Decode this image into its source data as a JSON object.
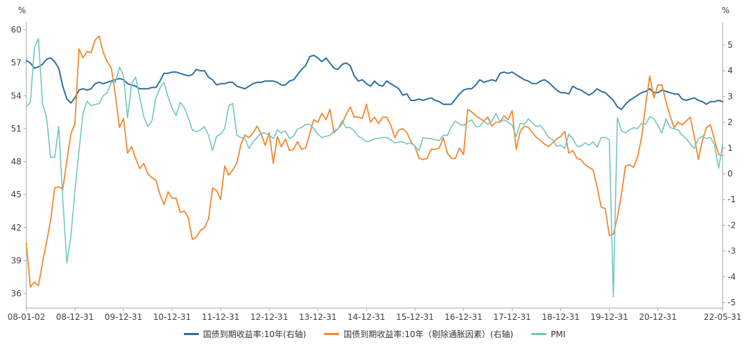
{
  "chart_data": {
    "type": "line",
    "title": "",
    "left_axis": {
      "unit": "%",
      "min": 36,
      "max": 60,
      "step": 3,
      "ticks": [
        36,
        39,
        42,
        45,
        48,
        51,
        54,
        57,
        60
      ]
    },
    "right_axis": {
      "unit": "%",
      "min": -5,
      "max": 5,
      "step": 1,
      "ticks": [
        -5,
        -4,
        -3,
        -2,
        -1,
        0,
        1,
        2,
        3,
        4,
        5
      ]
    },
    "grid": "off",
    "legend_position": "bottom",
    "x_start_month": "2008-01",
    "x_months_total": 173,
    "x_max_t": 172,
    "x_ticks": [
      {
        "label": "08-01-02",
        "t": 0
      },
      {
        "label": "08-12-31",
        "t": 12
      },
      {
        "label": "09-12-31",
        "t": 24
      },
      {
        "label": "10-12-31",
        "t": 36
      },
      {
        "label": "11-12-31",
        "t": 48
      },
      {
        "label": "12-12-31",
        "t": 60
      },
      {
        "label": "13-12-31",
        "t": 72
      },
      {
        "label": "14-12-31",
        "t": 84
      },
      {
        "label": "15-12-31",
        "t": 96
      },
      {
        "label": "16-12-31",
        "t": 108
      },
      {
        "label": "17-12-31",
        "t": 120
      },
      {
        "label": "18-12-31",
        "t": 132
      },
      {
        "label": "19-12-31",
        "t": 144
      },
      {
        "label": "20-12-31",
        "t": 156
      },
      {
        "label": "22-05-31",
        "t": 172
      }
    ],
    "series": [
      {
        "name": "国债到期收益率:10年(右轴)",
        "color": "#2e6f9d",
        "axis": "right",
        "stroke_width": 2,
        "values": [
          4.4,
          4.3,
          4.1,
          4.15,
          4.25,
          4.45,
          4.5,
          4.35,
          4.1,
          3.4,
          2.9,
          2.75,
          2.95,
          3.25,
          3.3,
          3.25,
          3.3,
          3.5,
          3.55,
          3.5,
          3.55,
          3.6,
          3.65,
          3.7,
          3.65,
          3.5,
          3.45,
          3.4,
          3.3,
          3.3,
          3.3,
          3.35,
          3.35,
          3.6,
          3.9,
          3.9,
          3.95,
          3.95,
          3.9,
          3.85,
          3.8,
          3.85,
          4.05,
          4.0,
          4.0,
          3.75,
          3.65,
          3.45,
          3.5,
          3.5,
          3.55,
          3.55,
          3.4,
          3.35,
          3.3,
          3.4,
          3.5,
          3.55,
          3.55,
          3.6,
          3.6,
          3.6,
          3.55,
          3.45,
          3.45,
          3.6,
          3.65,
          3.85,
          4.05,
          4.2,
          4.55,
          4.6,
          4.5,
          4.35,
          4.5,
          4.3,
          4.1,
          4.05,
          4.25,
          4.3,
          4.2,
          3.8,
          3.6,
          3.65,
          3.5,
          3.4,
          3.6,
          3.45,
          3.4,
          3.6,
          3.5,
          3.4,
          3.3,
          3.05,
          3.1,
          2.85,
          2.85,
          2.9,
          2.85,
          2.9,
          2.95,
          2.85,
          2.8,
          2.7,
          2.7,
          2.7,
          2.9,
          3.1,
          3.25,
          3.3,
          3.3,
          3.45,
          3.65,
          3.55,
          3.6,
          3.65,
          3.6,
          3.9,
          3.95,
          3.9,
          3.95,
          3.85,
          3.75,
          3.65,
          3.6,
          3.5,
          3.5,
          3.6,
          3.65,
          3.55,
          3.4,
          3.25,
          3.15,
          3.15,
          3.1,
          3.4,
          3.3,
          3.25,
          3.15,
          3.05,
          3.15,
          3.3,
          3.2,
          3.15,
          3.0,
          2.85,
          2.6,
          2.5,
          2.7,
          2.85,
          2.95,
          3.05,
          3.15,
          3.2,
          3.3,
          3.15,
          3.15,
          3.25,
          3.2,
          3.15,
          3.1,
          3.1,
          2.9,
          2.85,
          2.9,
          2.95,
          2.85,
          2.8,
          2.7,
          2.8,
          2.8,
          2.85,
          2.8
        ]
      },
      {
        "name": "国债到期收益率:10年（剔除通胀因素）(右轴)",
        "color": "#f2882f",
        "axis": "right",
        "stroke_width": 1.8,
        "values": [
          -2.7,
          -4.4,
          -4.2,
          -4.35,
          -3.45,
          -2.65,
          -1.8,
          -0.55,
          -0.5,
          -0.6,
          0.5,
          1.55,
          1.95,
          4.85,
          4.5,
          4.75,
          4.7,
          5.2,
          5.35,
          4.7,
          4.35,
          4.1,
          3.05,
          1.8,
          2.15,
          0.8,
          1.05,
          0.6,
          0.2,
          0.4,
          0.0,
          -0.15,
          -0.25,
          -0.8,
          -1.2,
          -0.7,
          -0.95,
          -0.95,
          -1.5,
          -1.45,
          -1.7,
          -2.55,
          -2.45,
          -2.2,
          -2.1,
          -1.75,
          -0.55,
          -0.65,
          -1.0,
          0.3,
          -0.05,
          0.15,
          0.4,
          1.15,
          1.5,
          1.4,
          1.6,
          1.85,
          1.55,
          1.1,
          1.6,
          0.4,
          1.45,
          1.05,
          1.35,
          0.9,
          0.95,
          1.25,
          0.95,
          1.0,
          1.55,
          2.1,
          2.0,
          2.35,
          2.1,
          2.5,
          1.6,
          1.75,
          1.95,
          2.3,
          2.6,
          2.2,
          2.2,
          2.15,
          2.7,
          2.0,
          2.2,
          1.95,
          2.2,
          2.2,
          1.9,
          1.4,
          1.7,
          1.75,
          1.6,
          1.25,
          1.05,
          0.6,
          0.55,
          0.6,
          0.95,
          0.95,
          1.0,
          1.4,
          0.8,
          0.6,
          0.6,
          1.0,
          0.75,
          2.5,
          2.4,
          2.25,
          2.15,
          2.05,
          2.2,
          1.85,
          2.0,
          2.0,
          2.25,
          2.1,
          2.45,
          0.95,
          1.65,
          1.85,
          1.8,
          1.6,
          1.4,
          1.3,
          1.15,
          1.05,
          1.2,
          1.35,
          1.45,
          1.65,
          0.8,
          0.9,
          0.6,
          0.55,
          0.35,
          0.25,
          0.15,
          -0.5,
          -1.3,
          -1.35,
          -2.4,
          -2.35,
          -1.7,
          -0.8,
          0.3,
          0.35,
          0.25,
          0.65,
          1.45,
          2.7,
          3.8,
          2.95,
          3.45,
          3.45,
          2.8,
          2.25,
          1.8,
          2.0,
          1.9,
          2.05,
          2.2,
          1.45,
          0.55,
          1.3,
          1.8,
          1.9,
          1.3,
          0.75,
          0.7
        ]
      },
      {
        "name": "PMI",
        "color": "#72c6bf",
        "axis": "left",
        "stroke_width": 1.6,
        "values": [
          53.0,
          53.4,
          58.4,
          59.2,
          53.3,
          52.0,
          48.4,
          48.4,
          51.2,
          44.6,
          38.8,
          41.2,
          45.3,
          49.0,
          52.4,
          53.5,
          53.1,
          53.2,
          53.3,
          54.0,
          54.3,
          55.2,
          55.2,
          56.6,
          55.8,
          52.0,
          55.1,
          55.7,
          53.9,
          52.1,
          51.2,
          51.7,
          53.8,
          54.7,
          55.2,
          53.9,
          52.9,
          52.2,
          53.4,
          52.9,
          52.0,
          50.9,
          50.7,
          50.9,
          51.2,
          50.4,
          49.0,
          50.3,
          50.5,
          51.0,
          53.1,
          53.3,
          50.4,
          50.2,
          50.1,
          49.2,
          49.8,
          50.2,
          50.6,
          50.6,
          50.4,
          50.1,
          50.9,
          50.6,
          50.8,
          50.1,
          50.3,
          51.0,
          51.1,
          51.4,
          51.4,
          51.0,
          50.5,
          50.2,
          50.3,
          50.4,
          50.8,
          51.0,
          51.7,
          51.1,
          51.1,
          50.8,
          50.3,
          50.1,
          49.8,
          49.9,
          50.1,
          50.1,
          50.2,
          50.2,
          50.0,
          49.7,
          49.8,
          49.8,
          49.6,
          49.7,
          49.4,
          49.0,
          50.2,
          50.1,
          50.1,
          50.0,
          49.9,
          50.4,
          50.4,
          51.2,
          51.7,
          51.4,
          51.3,
          51.6,
          51.8,
          51.2,
          51.2,
          51.7,
          51.4,
          51.7,
          52.4,
          51.6,
          51.8,
          51.6,
          51.3,
          50.3,
          51.5,
          51.4,
          51.9,
          51.5,
          51.2,
          51.3,
          50.8,
          50.2,
          50.0,
          49.4,
          49.5,
          49.2,
          50.5,
          50.1,
          49.4,
          49.4,
          49.7,
          49.5,
          49.8,
          49.3,
          50.2,
          50.2,
          50.0,
          35.7,
          52.0,
          50.8,
          50.6,
          50.9,
          51.1,
          51.0,
          51.5,
          51.4,
          52.1,
          51.9,
          51.3,
          50.6,
          51.9,
          51.1,
          51.0,
          50.9,
          50.4,
          50.1,
          49.6,
          49.2,
          50.1,
          50.3,
          50.1,
          50.2,
          49.5,
          47.4,
          49.6
        ]
      }
    ]
  }
}
